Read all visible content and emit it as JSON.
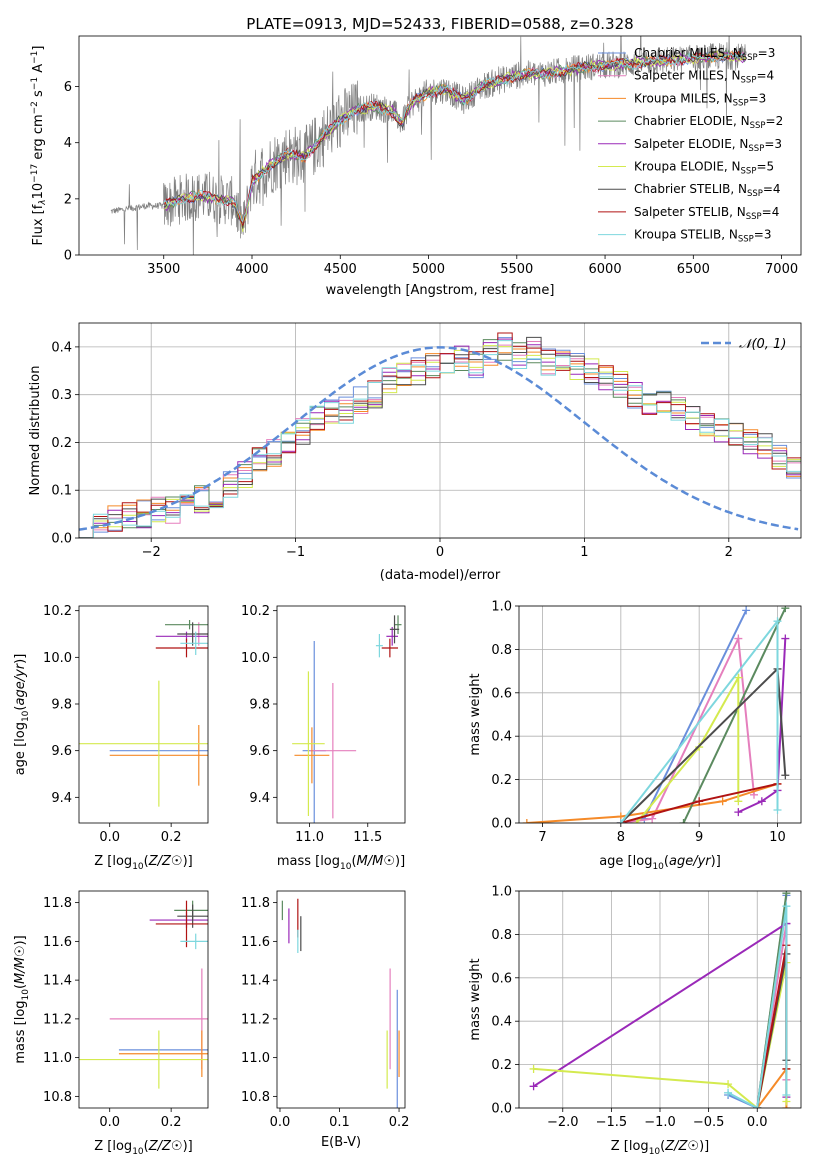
{
  "figure": {
    "title": "PLATE=0913, MJD=52433, FIBERID=0588, z=0.328"
  },
  "models": [
    {
      "label": "Chabrier MILES, N",
      "sub": "SSP",
      "tail": "=3",
      "color": "#6a8fdc"
    },
    {
      "label": "Salpeter MILES, N",
      "sub": "SSP",
      "tail": "=4",
      "color": "#e57fbd"
    },
    {
      "label": "Kroupa MILES, N",
      "sub": "SSP",
      "tail": "=3",
      "color": "#f58a28"
    },
    {
      "label": "Chabrier ELODIE, N",
      "sub": "SSP",
      "tail": "=2",
      "color": "#5b8a5f"
    },
    {
      "label": "Salpeter ELODIE, N",
      "sub": "SSP",
      "tail": "=3",
      "color": "#9a29b8"
    },
    {
      "label": "Kroupa ELODIE, N",
      "sub": "SSP",
      "tail": "=5",
      "color": "#d4ea4f"
    },
    {
      "label": "Chabrier STELIB, N",
      "sub": "SSP",
      "tail": "=4",
      "color": "#4c4c4c"
    },
    {
      "label": "Salpeter STELIB, N",
      "sub": "SSP",
      "tail": "=4",
      "color": "#b01313"
    },
    {
      "label": "Kroupa STELIB, N",
      "sub": "SSP",
      "tail": "=3",
      "color": "#7ed7de"
    }
  ],
  "chart_data": [
    {
      "id": "spectrum",
      "type": "line",
      "xlabel": "wavelength [Angstrom, rest frame]",
      "ylabel_parts": [
        "Flux [f",
        "λ",
        "10",
        "−17",
        " erg cm",
        "−2",
        " s",
        "−1",
        " A",
        "−1",
        "]"
      ],
      "xlim": [
        3020,
        7110
      ],
      "ylim": [
        0,
        7.8
      ],
      "xticks": [
        3500,
        4000,
        4500,
        5000,
        5500,
        6000,
        6500,
        7000
      ],
      "yticks": [
        0,
        2,
        4,
        6
      ],
      "data_color": "#808080",
      "continuum_anchors": [
        [
          3200,
          1.55
        ],
        [
          3400,
          1.75
        ],
        [
          3500,
          1.75
        ],
        [
          3600,
          2.0
        ],
        [
          3700,
          2.1
        ],
        [
          3800,
          2.0
        ],
        [
          3900,
          1.9
        ],
        [
          3950,
          1.0
        ],
        [
          4000,
          2.6
        ],
        [
          4100,
          3.2
        ],
        [
          4200,
          3.6
        ],
        [
          4300,
          3.5
        ],
        [
          4400,
          4.2
        ],
        [
          4500,
          4.8
        ],
        [
          4600,
          5.2
        ],
        [
          4700,
          5.3
        ],
        [
          4800,
          5.1
        ],
        [
          4850,
          4.7
        ],
        [
          4900,
          5.4
        ],
        [
          5000,
          5.8
        ],
        [
          5100,
          5.9
        ],
        [
          5200,
          5.5
        ],
        [
          5300,
          6.0
        ],
        [
          5500,
          6.4
        ],
        [
          5700,
          6.5
        ],
        [
          5900,
          6.7
        ],
        [
          6100,
          6.8
        ],
        [
          6300,
          6.9
        ],
        [
          6500,
          7.0
        ],
        [
          6700,
          7.1
        ],
        [
          6800,
          7.0
        ]
      ],
      "model_xrange": [
        3500,
        6800
      ],
      "data_xrange": [
        3200,
        6800
      ]
    },
    {
      "id": "residuals",
      "type": "histogram",
      "xlabel": "(data-model)/error",
      "ylabel": "Normed distribution",
      "xlim": [
        -2.5,
        2.5
      ],
      "ylim": [
        0,
        0.45
      ],
      "xticks": [
        -2,
        -1,
        0,
        1,
        2
      ],
      "yticks": [
        0.0,
        0.1,
        0.2,
        0.3,
        0.4
      ],
      "bin_width": 0.1,
      "legend": "𝒩(0, 1)",
      "normal_color": "#5b8bd6",
      "bins_start": -2.5,
      "base_shape": [
        0.03,
        0.03,
        0.04,
        0.05,
        0.05,
        0.06,
        0.06,
        0.07,
        0.08,
        0.09,
        0.11,
        0.13,
        0.16,
        0.18,
        0.2,
        0.22,
        0.25,
        0.26,
        0.27,
        0.29,
        0.3,
        0.33,
        0.34,
        0.35,
        0.36,
        0.37,
        0.38,
        0.36,
        0.39,
        0.4,
        0.38,
        0.39,
        0.37,
        0.37,
        0.36,
        0.35,
        0.34,
        0.32,
        0.3,
        0.28,
        0.28,
        0.27,
        0.25,
        0.24,
        0.23,
        0.21,
        0.2,
        0.19,
        0.17,
        0.15,
        0.14,
        0.13,
        0.12,
        0.11,
        0.1,
        0.09,
        0.08,
        0.07,
        0.06,
        0.06,
        0.05,
        0.05,
        0.06,
        0.07,
        0.07,
        0.08,
        0.08,
        0.07,
        0.07,
        0.06,
        0.06,
        0.05,
        0.05,
        0.06,
        0.07,
        0.07,
        0.08,
        0.07,
        0.06,
        0.06,
        0.05,
        0.05,
        0.04,
        0.04,
        0.04,
        0.05,
        0.05,
        0.06,
        0.07,
        0.07,
        0.06,
        0.06,
        0.05,
        0.05,
        0.05,
        0.04,
        0.04,
        0.04,
        0.04,
        0.04
      ]
    },
    {
      "id": "age_vs_Z",
      "type": "errorbar",
      "xlabel": "Z [log10(Z/Z☉)]",
      "ylabel": "age  [log10(age/yr)]",
      "xlim": [
        -0.1,
        0.32
      ],
      "ylim": [
        9.29,
        10.22
      ],
      "xticks": [
        0.0,
        0.2
      ],
      "yticks": [
        9.4,
        9.6,
        9.8,
        10.0,
        10.2
      ],
      "points": [
        {
          "m": 0,
          "x": 0.3,
          "y": 9.6,
          "xerr": 0.3,
          "yerr": 0.0
        },
        {
          "m": 1,
          "x": 0.29,
          "y": 10.1,
          "xerr": 0.0,
          "yerr": 0.05
        },
        {
          "m": 2,
          "x": 0.29,
          "y": 9.58,
          "xerr": 0.29,
          "yerr": 0.13
        },
        {
          "m": 3,
          "x": 0.26,
          "y": 10.14,
          "xerr": 0.08,
          "yerr": 0.02
        },
        {
          "m": 4,
          "x": 0.25,
          "y": 10.09,
          "xerr": 0.1,
          "yerr": 0.02
        },
        {
          "m": 5,
          "x": 0.16,
          "y": 9.63,
          "xerr": 0.26,
          "yerr": 0.27
        },
        {
          "m": 6,
          "x": 0.27,
          "y": 10.1,
          "xerr": 0.05,
          "yerr": 0.05
        },
        {
          "m": 7,
          "x": 0.25,
          "y": 10.04,
          "xerr": 0.1,
          "yerr": 0.04
        },
        {
          "m": 8,
          "x": 0.28,
          "y": 10.06,
          "xerr": 0.05,
          "yerr": 0.05
        }
      ]
    },
    {
      "id": "age_vs_mass",
      "type": "errorbar",
      "xlabel": "mass [log10(M/M☉)]",
      "ylabel": "",
      "xlim": [
        10.72,
        11.82
      ],
      "ylim": [
        9.29,
        10.22
      ],
      "xticks": [
        11.0,
        11.5
      ],
      "yticks": [
        9.4,
        9.6,
        9.8,
        10.0,
        10.2
      ],
      "points": [
        {
          "m": 0,
          "x": 11.04,
          "y": 9.6,
          "xerr": 0.1,
          "yerr": 0.47
        },
        {
          "m": 1,
          "x": 11.2,
          "y": 9.6,
          "xerr": 0.2,
          "yerr": 0.29
        },
        {
          "m": 2,
          "x": 11.02,
          "y": 9.58,
          "xerr": 0.15,
          "yerr": 0.12
        },
        {
          "m": 3,
          "x": 11.76,
          "y": 10.14,
          "xerr": 0.03,
          "yerr": 0.04
        },
        {
          "m": 4,
          "x": 11.71,
          "y": 10.09,
          "xerr": 0.05,
          "yerr": 0.04
        },
        {
          "m": 5,
          "x": 10.99,
          "y": 9.63,
          "xerr": 0.14,
          "yerr": 0.31
        },
        {
          "m": 6,
          "x": 11.73,
          "y": 10.12,
          "xerr": 0.04,
          "yerr": 0.06
        },
        {
          "m": 7,
          "x": 11.69,
          "y": 10.04,
          "xerr": 0.07,
          "yerr": 0.04
        },
        {
          "m": 8,
          "x": 11.6,
          "y": 10.05,
          "xerr": 0.03,
          "yerr": 0.05
        }
      ]
    },
    {
      "id": "massweight_vs_age",
      "type": "line",
      "xlabel": "age  [log10(age/yr)]",
      "ylabel": "mass weight",
      "xlim": [
        6.7,
        10.3
      ],
      "ylim": [
        0,
        1
      ],
      "xticks": [
        7,
        8,
        9,
        10
      ],
      "yticks": [
        0.0,
        0.2,
        0.4,
        0.6,
        0.8,
        1.0
      ],
      "lines": [
        {
          "m": 0,
          "pts": [
            [
              8.0,
              0.0
            ],
            [
              8.3,
              0.02
            ],
            [
              9.6,
              0.98
            ]
          ]
        },
        {
          "m": 1,
          "pts": [
            [
              8.0,
              0.0
            ],
            [
              8.4,
              0.02
            ],
            [
              9.5,
              0.85
            ],
            [
              9.7,
              0.13
            ]
          ]
        },
        {
          "m": 2,
          "pts": [
            [
              6.8,
              0.0
            ],
            [
              8.0,
              0.03
            ],
            [
              9.3,
              0.1
            ],
            [
              10.0,
              0.18
            ]
          ]
        },
        {
          "m": 3,
          "pts": [
            [
              8.8,
              0.0
            ],
            [
              10.1,
              0.99
            ]
          ]
        },
        {
          "m": 4,
          "pts": [
            [
              9.5,
              0.05
            ],
            [
              9.8,
              0.1
            ],
            [
              10.0,
              0.15
            ],
            [
              10.1,
              0.85
            ]
          ]
        },
        {
          "m": 5,
          "pts": [
            [
              8.2,
              0.0
            ],
            [
              9.0,
              0.35
            ],
            [
              9.5,
              0.67
            ],
            [
              9.5,
              0.1
            ]
          ]
        },
        {
          "m": 6,
          "pts": [
            [
              8.0,
              0.0
            ],
            [
              10.0,
              0.71
            ],
            [
              10.1,
              0.22
            ]
          ]
        },
        {
          "m": 7,
          "pts": [
            [
              8.0,
              0.0
            ],
            [
              9.0,
              0.1
            ],
            [
              10.0,
              0.18
            ]
          ]
        },
        {
          "m": 8,
          "pts": [
            [
              8.0,
              0.0
            ],
            [
              10.0,
              0.93
            ],
            [
              10.0,
              0.06
            ]
          ]
        }
      ]
    },
    {
      "id": "mass_vs_Z",
      "type": "errorbar",
      "xlabel": "Z [log10(Z/Z☉)]",
      "ylabel": "mass [log10(M/M☉)]",
      "xlim": [
        -0.1,
        0.32
      ],
      "ylim": [
        10.74,
        11.86
      ],
      "xticks": [
        0.0,
        0.2
      ],
      "yticks": [
        10.8,
        11.0,
        11.2,
        11.4,
        11.6,
        11.8
      ],
      "points": [
        {
          "m": 0,
          "x": 0.3,
          "y": 11.04,
          "xerr": 0.27,
          "yerr": 0.0
        },
        {
          "m": 1,
          "x": 0.3,
          "y": 11.2,
          "xerr": 0.3,
          "yerr": 0.26
        },
        {
          "m": 2,
          "x": 0.3,
          "y": 11.02,
          "xerr": 0.27,
          "yerr": 0.12
        },
        {
          "m": 3,
          "x": 0.27,
          "y": 11.76,
          "xerr": 0.06,
          "yerr": 0.05
        },
        {
          "m": 4,
          "x": 0.25,
          "y": 11.71,
          "xerr": 0.12,
          "yerr": 0.04
        },
        {
          "m": 5,
          "x": 0.16,
          "y": 10.99,
          "xerr": 0.26,
          "yerr": 0.15
        },
        {
          "m": 6,
          "x": 0.27,
          "y": 11.73,
          "xerr": 0.05,
          "yerr": 0.06
        },
        {
          "m": 7,
          "x": 0.25,
          "y": 11.69,
          "xerr": 0.1,
          "yerr": 0.12
        },
        {
          "m": 8,
          "x": 0.28,
          "y": 11.6,
          "xerr": 0.05,
          "yerr": 0.04
        }
      ]
    },
    {
      "id": "mass_vs_ebv",
      "type": "errorbar",
      "xlabel": "E(B-V)",
      "ylabel": "",
      "xlim": [
        -0.005,
        0.21
      ],
      "ylim": [
        10.74,
        11.86
      ],
      "xticks": [
        0.0,
        0.1,
        0.2
      ],
      "yticks": [
        10.8,
        11.0,
        11.2,
        11.4,
        11.6,
        11.8
      ],
      "points": [
        {
          "m": 0,
          "x": 0.197,
          "y": 11.04,
          "xerr": 0.0,
          "yerr": 0.31
        },
        {
          "m": 1,
          "x": 0.185,
          "y": 11.2,
          "xerr": 0.0,
          "yerr": 0.26
        },
        {
          "m": 2,
          "x": 0.2,
          "y": 11.02,
          "xerr": 0.0,
          "yerr": 0.12
        },
        {
          "m": 3,
          "x": 0.004,
          "y": 11.76,
          "xerr": 0.0,
          "yerr": 0.05
        },
        {
          "m": 4,
          "x": 0.015,
          "y": 11.68,
          "xerr": 0.0,
          "yerr": 0.09
        },
        {
          "m": 5,
          "x": 0.18,
          "y": 10.99,
          "xerr": 0.0,
          "yerr": 0.15
        },
        {
          "m": 6,
          "x": 0.035,
          "y": 11.64,
          "xerr": 0.0,
          "yerr": 0.09
        },
        {
          "m": 7,
          "x": 0.03,
          "y": 11.72,
          "xerr": 0.0,
          "yerr": 0.1
        },
        {
          "m": 8,
          "x": 0.03,
          "y": 11.6,
          "xerr": 0.0,
          "yerr": 0.06
        }
      ]
    },
    {
      "id": "massweight_vs_Z",
      "type": "line",
      "xlabel": "Z [log10(Z/Z☉)]",
      "ylabel": "mass weight",
      "xlim": [
        -2.45,
        0.45
      ],
      "ylim": [
        0,
        1
      ],
      "xticks": [
        -2.0,
        -1.5,
        -1.0,
        -0.5,
        0.0
      ],
      "yticks": [
        0.0,
        0.2,
        0.4,
        0.6,
        0.8,
        1.0
      ],
      "lines": [
        {
          "m": 0,
          "pts": [
            [
              -0.3,
              0.06
            ],
            [
              0.0,
              0.0
            ],
            [
              0.3,
              0.98
            ]
          ]
        },
        {
          "m": 1,
          "pts": [
            [
              0.0,
              0.0
            ],
            [
              0.3,
              0.85
            ],
            [
              0.3,
              0.13
            ]
          ]
        },
        {
          "m": 2,
          "pts": [
            [
              0.0,
              0.0
            ],
            [
              0.3,
              0.18
            ],
            [
              0.3,
              0.0
            ]
          ]
        },
        {
          "m": 3,
          "pts": [
            [
              0.0,
              0.0
            ],
            [
              0.3,
              0.99
            ]
          ]
        },
        {
          "m": 4,
          "pts": [
            [
              -2.3,
              0.1
            ],
            [
              0.3,
              0.85
            ],
            [
              0.3,
              0.05
            ]
          ]
        },
        {
          "m": 5,
          "pts": [
            [
              -2.3,
              0.18
            ],
            [
              -0.3,
              0.11
            ],
            [
              0.0,
              0.0
            ],
            [
              0.3,
              0.67
            ],
            [
              0.3,
              0.03
            ]
          ]
        },
        {
          "m": 6,
          "pts": [
            [
              0.0,
              0.0
            ],
            [
              0.3,
              0.71
            ],
            [
              0.3,
              0.22
            ]
          ]
        },
        {
          "m": 7,
          "pts": [
            [
              0.0,
              0.0
            ],
            [
              0.3,
              0.75
            ],
            [
              0.3,
              0.18
            ]
          ]
        },
        {
          "m": 8,
          "pts": [
            [
              -0.3,
              0.07
            ],
            [
              0.0,
              0.0
            ],
            [
              0.3,
              0.93
            ],
            [
              0.3,
              0.06
            ]
          ]
        }
      ]
    }
  ]
}
